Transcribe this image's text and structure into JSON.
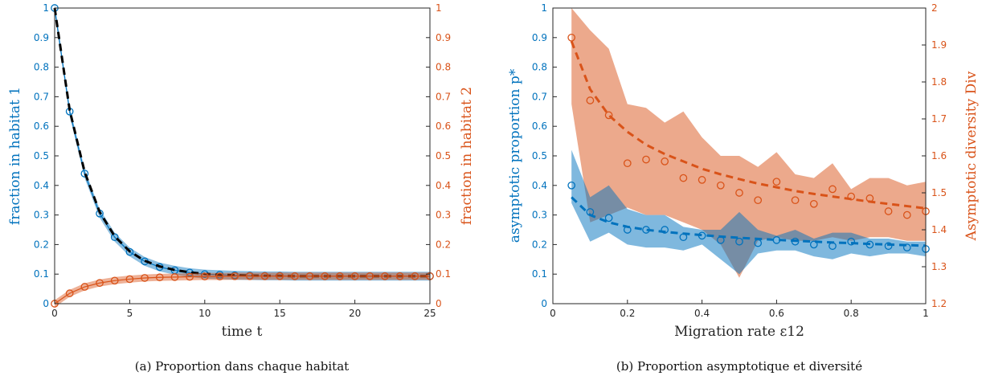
{
  "colors": {
    "blue": "#0072BD",
    "orange": "#D95319",
    "black": "#000000",
    "axis": "#262626"
  },
  "chart_data": [
    {
      "type": "line",
      "caption": "(a) Proportion dans chaque habitat",
      "xlabel": "time t",
      "ylabel_left": "fraction in habitat 1",
      "ylabel_right": "fraction in habitat 2",
      "xlim": [
        0,
        25
      ],
      "ylim_left": [
        0,
        1
      ],
      "ylim_right": [
        0,
        1
      ],
      "xticks": [
        0,
        5,
        10,
        15,
        20,
        25
      ],
      "yticks_left": [
        0,
        0.1,
        0.2,
        0.3,
        0.4,
        0.5,
        0.6,
        0.7,
        0.8,
        0.9,
        1
      ],
      "yticks_right": [
        0,
        0.1,
        0.2,
        0.3,
        0.4,
        0.5,
        0.6,
        0.7,
        0.8,
        0.9,
        1
      ],
      "x": [
        0,
        1,
        2,
        3,
        4,
        5,
        6,
        7,
        8,
        9,
        10,
        11,
        12,
        13,
        14,
        15,
        16,
        17,
        18,
        19,
        20,
        21,
        22,
        23,
        24,
        25
      ],
      "series": [
        {
          "axis": "left",
          "style": "markers",
          "color": "blue",
          "band_halfwidth": 0.015,
          "values": [
            1.0,
            0.65,
            0.44,
            0.305,
            0.225,
            0.175,
            0.143,
            0.124,
            0.113,
            0.105,
            0.1,
            0.098,
            0.096,
            0.095,
            0.094,
            0.094,
            0.093,
            0.093,
            0.093,
            0.093,
            0.093,
            0.093,
            0.093,
            0.093,
            0.093,
            0.093
          ]
        },
        {
          "axis": "left",
          "style": "dashed",
          "color": "black",
          "values": [
            1.0,
            0.655,
            0.445,
            0.31,
            0.228,
            0.177,
            0.145,
            0.126,
            0.114,
            0.106,
            0.101,
            0.098,
            0.096,
            0.095,
            0.094,
            0.094,
            0.093,
            0.093,
            0.093,
            0.093,
            0.093,
            0.093,
            0.093,
            0.093,
            0.093,
            0.093
          ]
        },
        {
          "axis": "right",
          "style": "markers",
          "color": "orange",
          "band_halfwidth": 0.012,
          "values": [
            0.0,
            0.035,
            0.057,
            0.07,
            0.078,
            0.083,
            0.087,
            0.089,
            0.09,
            0.091,
            0.092,
            0.092,
            0.093,
            0.093,
            0.093,
            0.093,
            0.093,
            0.093,
            0.093,
            0.093,
            0.093,
            0.093,
            0.093,
            0.093,
            0.093,
            0.093
          ]
        }
      ]
    },
    {
      "type": "line",
      "caption": "(b) Proportion asymptotique et diversité",
      "xlabel": "Migration rate ε12",
      "ylabel_left": "asymptotic proportion p*",
      "ylabel_right": "Asymptotic diversity Div",
      "xlim": [
        0,
        1
      ],
      "ylim_left": [
        0,
        1
      ],
      "ylim_right": [
        1.2,
        2
      ],
      "xticks": [
        0,
        0.2,
        0.4,
        0.6,
        0.8,
        1
      ],
      "yticks_left": [
        0,
        0.1,
        0.2,
        0.3,
        0.4,
        0.5,
        0.6,
        0.7,
        0.8,
        0.9,
        1
      ],
      "yticks_right": [
        1.2,
        1.3,
        1.4,
        1.5,
        1.6,
        1.7,
        1.8,
        1.9,
        2
      ],
      "x": [
        0.05,
        0.1,
        0.15,
        0.2,
        0.25,
        0.3,
        0.35,
        0.4,
        0.45,
        0.5,
        0.55,
        0.6,
        0.65,
        0.7,
        0.75,
        0.8,
        0.85,
        0.9,
        0.95,
        1.0
      ],
      "series": [
        {
          "axis": "right",
          "style": "band",
          "color": "orange",
          "lower": [
            1.74,
            1.42,
            1.44,
            1.46,
            1.44,
            1.44,
            1.42,
            1.4,
            1.36,
            1.27,
            1.37,
            1.38,
            1.37,
            1.37,
            1.38,
            1.37,
            1.38,
            1.38,
            1.37,
            1.37
          ],
          "upper": [
            2.0,
            1.94,
            1.89,
            1.74,
            1.73,
            1.69,
            1.72,
            1.65,
            1.6,
            1.6,
            1.57,
            1.61,
            1.55,
            1.54,
            1.58,
            1.51,
            1.54,
            1.54,
            1.52,
            1.53
          ]
        },
        {
          "axis": "left",
          "style": "band",
          "color": "blue",
          "lower": [
            0.34,
            0.21,
            0.24,
            0.2,
            0.19,
            0.19,
            0.18,
            0.2,
            0.15,
            0.1,
            0.17,
            0.18,
            0.18,
            0.16,
            0.15,
            0.17,
            0.16,
            0.17,
            0.17,
            0.16
          ],
          "upper": [
            0.52,
            0.36,
            0.4,
            0.32,
            0.3,
            0.3,
            0.26,
            0.25,
            0.25,
            0.31,
            0.25,
            0.23,
            0.25,
            0.22,
            0.24,
            0.24,
            0.22,
            0.22,
            0.21,
            0.21
          ]
        },
        {
          "axis": "left",
          "style": "markers",
          "color": "blue",
          "values": [
            0.4,
            0.31,
            0.29,
            0.25,
            0.25,
            0.25,
            0.225,
            0.23,
            0.215,
            0.21,
            0.205,
            0.215,
            0.21,
            0.2,
            0.195,
            0.21,
            0.2,
            0.195,
            0.19,
            0.185
          ]
        },
        {
          "axis": "left",
          "style": "dashed",
          "color": "blue",
          "values": [
            0.36,
            0.3,
            0.275,
            0.26,
            0.25,
            0.243,
            0.237,
            0.232,
            0.227,
            0.223,
            0.219,
            0.216,
            0.213,
            0.21,
            0.207,
            0.205,
            0.202,
            0.2,
            0.198,
            0.196
          ]
        },
        {
          "axis": "right",
          "style": "markers",
          "color": "orange",
          "values": [
            1.92,
            1.75,
            1.71,
            1.58,
            1.59,
            1.585,
            1.54,
            1.535,
            1.52,
            1.5,
            1.48,
            1.53,
            1.48,
            1.47,
            1.51,
            1.49,
            1.485,
            1.45,
            1.44,
            1.45
          ]
        },
        {
          "axis": "right",
          "style": "dashed",
          "color": "orange",
          "values": [
            1.91,
            1.78,
            1.71,
            1.665,
            1.63,
            1.605,
            1.585,
            1.565,
            1.55,
            1.537,
            1.525,
            1.515,
            1.505,
            1.497,
            1.49,
            1.483,
            1.476,
            1.47,
            1.464,
            1.458
          ]
        }
      ]
    }
  ]
}
